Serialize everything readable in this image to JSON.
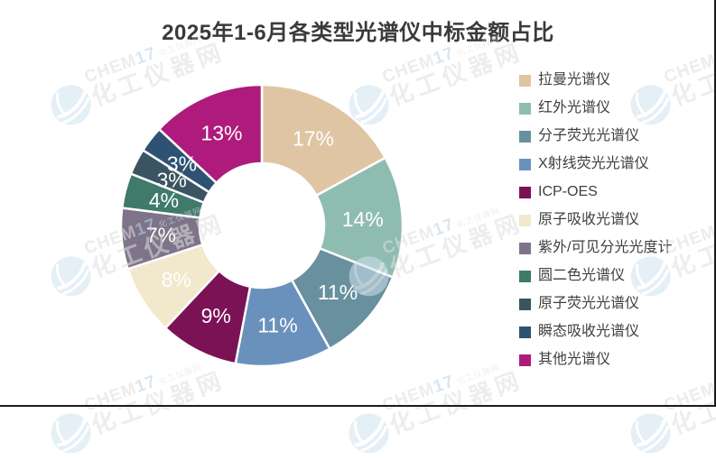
{
  "title": "2025年1-6月各类型光谱仪中标金额占比",
  "watermark": {
    "brand": "CHEM17",
    "site": "化工仪器网"
  },
  "chart_data": {
    "type": "pie",
    "subtype": "donut",
    "title": "2025年1-6月各类型光谱仪中标金额占比",
    "unit": "%",
    "start_angle_deg": 0,
    "direction": "clockwise",
    "inner_radius_ratio": 0.44,
    "legend_position": "right",
    "data_labels_visible": true,
    "series": [
      {
        "name": "拉曼光谱仪",
        "value": 17,
        "label": "17%",
        "color": "#DFC5A4"
      },
      {
        "name": "红外光谱仪",
        "value": 14,
        "label": "14%",
        "color": "#8FBCB1"
      },
      {
        "name": "分子荧光光谱仪",
        "value": 11,
        "label": "11%",
        "color": "#68909F"
      },
      {
        "name": "X射线荧光光谱仪",
        "value": 11,
        "label": "11%",
        "color": "#6A91BC"
      },
      {
        "name": "ICP-OES",
        "value": 9,
        "label": "9%",
        "color": "#7B1256"
      },
      {
        "name": "原子吸收光谱仪",
        "value": 8,
        "label": "8%",
        "color": "#F2E8CB"
      },
      {
        "name": "紫外/可见分光光度计",
        "value": 7,
        "label": "7%",
        "color": "#7E7489"
      },
      {
        "name": "圆二色光谱仪",
        "value": 4,
        "label": "4%",
        "color": "#3F7A6B"
      },
      {
        "name": "原子荧光光谱仪",
        "value": 3,
        "label": "3%",
        "color": "#3A5461"
      },
      {
        "name": "瞬态吸收光谱仪",
        "value": 3,
        "label": "3%",
        "color": "#2E5372"
      },
      {
        "name": "其他光谱仪",
        "value": 13,
        "label": "13%",
        "color": "#AE1B7C"
      }
    ]
  }
}
